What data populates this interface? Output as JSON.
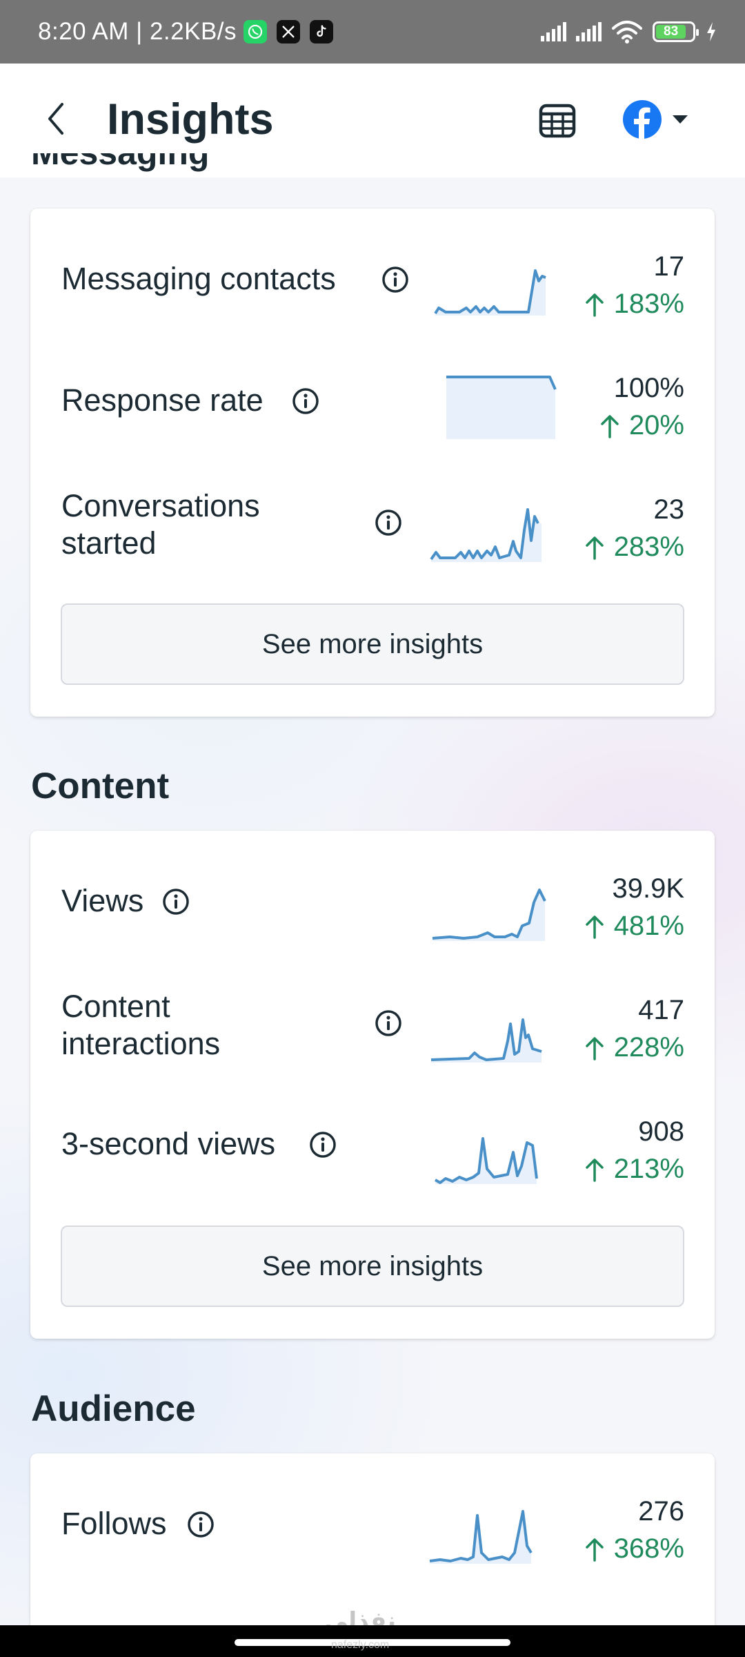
{
  "status_bar": {
    "time": "8:20 AM | 2.2KB/s",
    "battery": "83",
    "apps": [
      "whatsapp-icon",
      "x-icon",
      "tiktok-icon"
    ]
  },
  "header": {
    "title": "Insights"
  },
  "messaging": {
    "metrics": [
      {
        "label": "Messaging contacts",
        "value": "17",
        "change": "183%"
      },
      {
        "label": "Response rate",
        "value": "100%",
        "change": "20%"
      },
      {
        "label_line1": "Conversations",
        "label_line2": "started",
        "value": "23",
        "change": "283%"
      }
    ],
    "see_more": "See more insights"
  },
  "content": {
    "title": "Content",
    "metrics": [
      {
        "label": "Views",
        "value": "39.9K",
        "change": "481%"
      },
      {
        "label_line1": "Content",
        "label_line2": "interactions",
        "value": "417",
        "change": "228%"
      },
      {
        "label": "3-second views",
        "value": "908",
        "change": "213%"
      }
    ],
    "see_more": "See more insights"
  },
  "audience": {
    "title": "Audience",
    "metrics": [
      {
        "label": "Follows",
        "value": "276",
        "change": "368%"
      }
    ]
  },
  "watermark": "نفذلي",
  "watermark_sub": "nafezly.com",
  "colors": {
    "positive": "#1f8a5b",
    "spark_line": "#4a90c8",
    "spark_fill": "#e8f1fb",
    "facebook": "#1877f2"
  }
}
